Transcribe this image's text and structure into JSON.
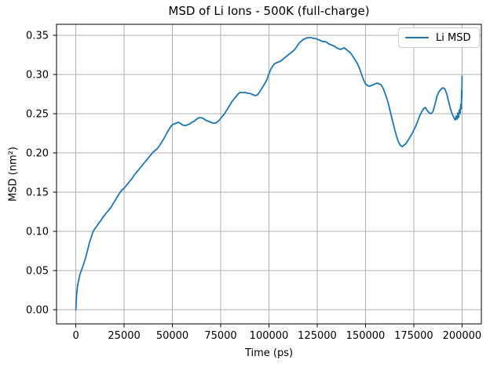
{
  "chart_data": {
    "type": "line",
    "title": "MSD of Li Ions - 500K (full-charge)",
    "xlabel": "Time (ps)",
    "ylabel": "MSD (nm²)",
    "xlim": [
      -10000,
      210000
    ],
    "ylim": [
      -0.018,
      0.364
    ],
    "xticks": [
      0,
      25000,
      50000,
      75000,
      100000,
      125000,
      150000,
      175000,
      200000
    ],
    "xtick_labels": [
      "0",
      "25000",
      "50000",
      "75000",
      "100000",
      "125000",
      "150000",
      "175000",
      "200000"
    ],
    "yticks": [
      0.0,
      0.05,
      0.1,
      0.15,
      0.2,
      0.25,
      0.3,
      0.35
    ],
    "ytick_labels": [
      "0.00",
      "0.05",
      "0.10",
      "0.15",
      "0.20",
      "0.25",
      "0.30",
      "0.35"
    ],
    "grid": true,
    "grid_color": "#b0b0b0",
    "spine_color": "#000000",
    "background_color": "#ffffff",
    "legend": {
      "position": "upper right",
      "entries": [
        "Li MSD"
      ]
    },
    "series": [
      {
        "name": "Li MSD",
        "color": "#1f77b4",
        "points": [
          [
            0,
            0.0
          ],
          [
            200,
            0.012
          ],
          [
            500,
            0.022
          ],
          [
            1000,
            0.032
          ],
          [
            1500,
            0.038
          ],
          [
            2000,
            0.044
          ],
          [
            3000,
            0.051
          ],
          [
            4000,
            0.058
          ],
          [
            5000,
            0.066
          ],
          [
            6000,
            0.075
          ],
          [
            7000,
            0.085
          ],
          [
            8000,
            0.093
          ],
          [
            9000,
            0.1
          ],
          [
            10000,
            0.104
          ],
          [
            11000,
            0.107
          ],
          [
            12000,
            0.111
          ],
          [
            13000,
            0.114
          ],
          [
            14000,
            0.118
          ],
          [
            15000,
            0.121
          ],
          [
            16000,
            0.124
          ],
          [
            17000,
            0.127
          ],
          [
            18000,
            0.13
          ],
          [
            19000,
            0.134
          ],
          [
            20000,
            0.138
          ],
          [
            21000,
            0.142
          ],
          [
            22000,
            0.146
          ],
          [
            23000,
            0.15
          ],
          [
            24000,
            0.153
          ],
          [
            25000,
            0.155
          ],
          [
            26000,
            0.158
          ],
          [
            27000,
            0.161
          ],
          [
            28000,
            0.164
          ],
          [
            29000,
            0.167
          ],
          [
            30000,
            0.171
          ],
          [
            31000,
            0.174
          ],
          [
            32000,
            0.177
          ],
          [
            33000,
            0.18
          ],
          [
            34000,
            0.183
          ],
          [
            35000,
            0.186
          ],
          [
            36000,
            0.189
          ],
          [
            37000,
            0.192
          ],
          [
            38000,
            0.195
          ],
          [
            39000,
            0.198
          ],
          [
            40000,
            0.201
          ],
          [
            41000,
            0.203
          ],
          [
            42000,
            0.205
          ],
          [
            43000,
            0.208
          ],
          [
            44000,
            0.212
          ],
          [
            45000,
            0.216
          ],
          [
            46000,
            0.22
          ],
          [
            47000,
            0.225
          ],
          [
            48000,
            0.229
          ],
          [
            49000,
            0.233
          ],
          [
            50000,
            0.236
          ],
          [
            51000,
            0.237
          ],
          [
            52000,
            0.238
          ],
          [
            53000,
            0.239
          ],
          [
            54000,
            0.238
          ],
          [
            55000,
            0.236
          ],
          [
            56000,
            0.235
          ],
          [
            57000,
            0.235
          ],
          [
            58000,
            0.236
          ],
          [
            59000,
            0.237
          ],
          [
            60000,
            0.239
          ],
          [
            61000,
            0.24
          ],
          [
            62000,
            0.242
          ],
          [
            63000,
            0.244
          ],
          [
            64000,
            0.245
          ],
          [
            65000,
            0.245
          ],
          [
            66000,
            0.244
          ],
          [
            67000,
            0.242
          ],
          [
            68000,
            0.241
          ],
          [
            69000,
            0.24
          ],
          [
            70000,
            0.239
          ],
          [
            71000,
            0.238
          ],
          [
            72000,
            0.238
          ],
          [
            73000,
            0.239
          ],
          [
            74000,
            0.241
          ],
          [
            75000,
            0.244
          ],
          [
            76000,
            0.247
          ],
          [
            77000,
            0.25
          ],
          [
            78000,
            0.254
          ],
          [
            79000,
            0.258
          ],
          [
            80000,
            0.262
          ],
          [
            81000,
            0.266
          ],
          [
            82000,
            0.269
          ],
          [
            83000,
            0.272
          ],
          [
            84000,
            0.275
          ],
          [
            85000,
            0.277
          ],
          [
            86000,
            0.277
          ],
          [
            87000,
            0.277
          ],
          [
            88000,
            0.277
          ],
          [
            89000,
            0.276
          ],
          [
            90000,
            0.276
          ],
          [
            91000,
            0.275
          ],
          [
            92000,
            0.274
          ],
          [
            93000,
            0.273
          ],
          [
            94000,
            0.274
          ],
          [
            95000,
            0.277
          ],
          [
            96000,
            0.281
          ],
          [
            97000,
            0.285
          ],
          [
            98000,
            0.289
          ],
          [
            99000,
            0.294
          ],
          [
            100000,
            0.301
          ],
          [
            101000,
            0.307
          ],
          [
            102000,
            0.311
          ],
          [
            103000,
            0.314
          ],
          [
            104000,
            0.315
          ],
          [
            105000,
            0.316
          ],
          [
            106000,
            0.317
          ],
          [
            107000,
            0.319
          ],
          [
            108000,
            0.321
          ],
          [
            109000,
            0.323
          ],
          [
            110000,
            0.325
          ],
          [
            111000,
            0.327
          ],
          [
            112000,
            0.329
          ],
          [
            113000,
            0.331
          ],
          [
            114000,
            0.334
          ],
          [
            115000,
            0.338
          ],
          [
            116000,
            0.341
          ],
          [
            117000,
            0.343
          ],
          [
            118000,
            0.345
          ],
          [
            119000,
            0.346
          ],
          [
            120000,
            0.347
          ],
          [
            121000,
            0.347
          ],
          [
            122000,
            0.347
          ],
          [
            123000,
            0.346
          ],
          [
            124000,
            0.346
          ],
          [
            125000,
            0.345
          ],
          [
            126000,
            0.344
          ],
          [
            127000,
            0.343
          ],
          [
            128000,
            0.342
          ],
          [
            129000,
            0.342
          ],
          [
            130000,
            0.341
          ],
          [
            131000,
            0.339
          ],
          [
            132000,
            0.338
          ],
          [
            133000,
            0.337
          ],
          [
            134000,
            0.336
          ],
          [
            135000,
            0.334
          ],
          [
            136000,
            0.333
          ],
          [
            137000,
            0.332
          ],
          [
            138000,
            0.333
          ],
          [
            139000,
            0.334
          ],
          [
            140000,
            0.332
          ],
          [
            141000,
            0.33
          ],
          [
            142000,
            0.328
          ],
          [
            143000,
            0.325
          ],
          [
            144000,
            0.321
          ],
          [
            145000,
            0.317
          ],
          [
            146000,
            0.313
          ],
          [
            147000,
            0.307
          ],
          [
            148000,
            0.3
          ],
          [
            149000,
            0.293
          ],
          [
            150000,
            0.288
          ],
          [
            151000,
            0.286
          ],
          [
            152000,
            0.285
          ],
          [
            153000,
            0.286
          ],
          [
            154000,
            0.287
          ],
          [
            155000,
            0.288
          ],
          [
            156000,
            0.289
          ],
          [
            157000,
            0.288
          ],
          [
            158000,
            0.287
          ],
          [
            159000,
            0.283
          ],
          [
            160000,
            0.277
          ],
          [
            161000,
            0.27
          ],
          [
            162000,
            0.261
          ],
          [
            163000,
            0.251
          ],
          [
            164000,
            0.241
          ],
          [
            165000,
            0.231
          ],
          [
            166000,
            0.222
          ],
          [
            167000,
            0.214
          ],
          [
            168000,
            0.21
          ],
          [
            169000,
            0.208
          ],
          [
            170000,
            0.21
          ],
          [
            171000,
            0.212
          ],
          [
            172000,
            0.216
          ],
          [
            173000,
            0.22
          ],
          [
            174000,
            0.224
          ],
          [
            175000,
            0.229
          ],
          [
            176000,
            0.234
          ],
          [
            177000,
            0.24
          ],
          [
            178000,
            0.247
          ],
          [
            179000,
            0.252
          ],
          [
            180000,
            0.256
          ],
          [
            181000,
            0.258
          ],
          [
            182000,
            0.254
          ],
          [
            183000,
            0.251
          ],
          [
            184000,
            0.25
          ],
          [
            185000,
            0.253
          ],
          [
            186000,
            0.262
          ],
          [
            187000,
            0.272
          ],
          [
            188000,
            0.278
          ],
          [
            189000,
            0.281
          ],
          [
            190000,
            0.283
          ],
          [
            191000,
            0.282
          ],
          [
            192000,
            0.276
          ],
          [
            193000,
            0.266
          ],
          [
            194000,
            0.256
          ],
          [
            195000,
            0.249
          ],
          [
            196000,
            0.244
          ],
          [
            196500,
            0.242
          ],
          [
            197000,
            0.247
          ],
          [
            197400,
            0.243
          ],
          [
            197800,
            0.251
          ],
          [
            198200,
            0.245
          ],
          [
            198600,
            0.255
          ],
          [
            199000,
            0.25
          ],
          [
            199300,
            0.262
          ],
          [
            199600,
            0.256
          ],
          [
            199800,
            0.28
          ],
          [
            199900,
            0.27
          ],
          [
            200000,
            0.298
          ]
        ]
      }
    ]
  }
}
